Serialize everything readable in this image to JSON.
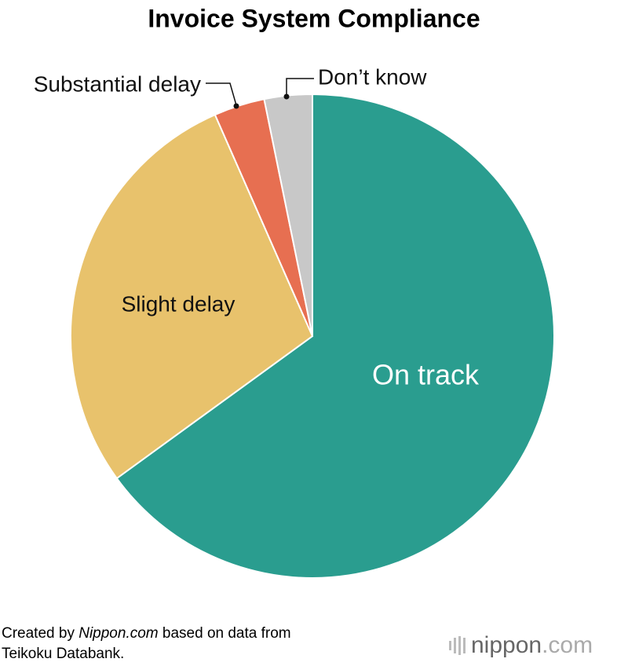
{
  "chart_data": {
    "type": "pie",
    "title": "Invoice System Compliance",
    "categories": [
      "On track",
      "Slight delay",
      "Substantial delay",
      "Don’t know"
    ],
    "values": [
      65,
      28.4,
      3.4,
      3.2
    ],
    "colors": [
      "#2a9d8f",
      "#e8c26c",
      "#e76f51",
      "#c8c8c8"
    ],
    "source_parts": [
      "Created by ",
      "Nippon.com",
      " based on data from",
      "Teikoku Databank."
    ],
    "logo_parts": [
      "nippon",
      ".com"
    ]
  }
}
